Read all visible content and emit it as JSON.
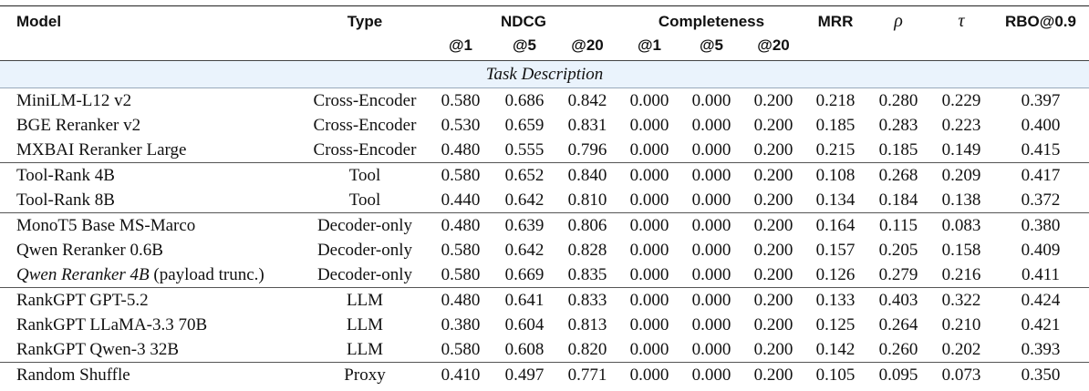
{
  "header": {
    "model": "Model",
    "type": "Type",
    "groups": [
      {
        "label": "NDCG",
        "subs": [
          "@1",
          "@5",
          "@20"
        ]
      },
      {
        "label": "Completeness",
        "subs": [
          "@1",
          "@5",
          "@20"
        ]
      }
    ],
    "metrics": [
      "MRR",
      "ρ",
      "τ",
      "RBO@0.9"
    ]
  },
  "section": "Task Description",
  "groups": [
    {
      "rows": [
        {
          "model": "MiniLM-L12 v2",
          "type": "Cross-Encoder",
          "values": [
            "0.580",
            "0.686",
            "0.842",
            "0.000",
            "0.000",
            "0.200",
            "0.218",
            "0.280",
            "0.229",
            "0.397"
          ]
        },
        {
          "model": "BGE Reranker v2",
          "type": "Cross-Encoder",
          "values": [
            "0.530",
            "0.659",
            "0.831",
            "0.000",
            "0.000",
            "0.200",
            "0.185",
            "0.283",
            "0.223",
            "0.400"
          ]
        },
        {
          "model": "MXBAI Reranker Large",
          "type": "Cross-Encoder",
          "values": [
            "0.480",
            "0.555",
            "0.796",
            "0.000",
            "0.000",
            "0.200",
            "0.215",
            "0.185",
            "0.149",
            "0.415"
          ]
        }
      ]
    },
    {
      "rows": [
        {
          "model": "Tool-Rank 4B",
          "type": "Tool",
          "values": [
            "0.580",
            "0.652",
            "0.840",
            "0.000",
            "0.000",
            "0.200",
            "0.108",
            "0.268",
            "0.209",
            "0.417"
          ]
        },
        {
          "model": "Tool-Rank 8B",
          "type": "Tool",
          "values": [
            "0.440",
            "0.642",
            "0.810",
            "0.000",
            "0.000",
            "0.200",
            "0.134",
            "0.184",
            "0.138",
            "0.372"
          ]
        }
      ]
    },
    {
      "rows": [
        {
          "model": "MonoT5 Base MS-Marco",
          "type": "Decoder-only",
          "values": [
            "0.480",
            "0.639",
            "0.806",
            "0.000",
            "0.000",
            "0.200",
            "0.164",
            "0.115",
            "0.083",
            "0.380"
          ]
        },
        {
          "model": "Qwen Reranker 0.6B",
          "type": "Decoder-only",
          "values": [
            "0.580",
            "0.642",
            "0.828",
            "0.000",
            "0.000",
            "0.200",
            "0.157",
            "0.205",
            "0.158",
            "0.409"
          ]
        },
        {
          "model": "Qwen Reranker 4B",
          "italic": true,
          "note": "(payload trunc.)",
          "type": "Decoder-only",
          "values": [
            "0.580",
            "0.669",
            "0.835",
            "0.000",
            "0.000",
            "0.200",
            "0.126",
            "0.279",
            "0.216",
            "0.411"
          ]
        }
      ]
    },
    {
      "rows": [
        {
          "model": "RankGPT GPT-5.2",
          "type": "LLM",
          "values": [
            "0.480",
            "0.641",
            "0.833",
            "0.000",
            "0.000",
            "0.200",
            "0.133",
            "0.403",
            "0.322",
            "0.424"
          ]
        },
        {
          "model": "RankGPT LLaMA-3.3 70B",
          "type": "LLM",
          "values": [
            "0.380",
            "0.604",
            "0.813",
            "0.000",
            "0.000",
            "0.200",
            "0.125",
            "0.264",
            "0.210",
            "0.421"
          ]
        },
        {
          "model": "RankGPT Qwen-3 32B",
          "type": "LLM",
          "values": [
            "0.580",
            "0.608",
            "0.820",
            "0.000",
            "0.000",
            "0.200",
            "0.142",
            "0.260",
            "0.202",
            "0.393"
          ]
        }
      ]
    },
    {
      "rows": [
        {
          "model": "Random Shuffle",
          "type": "Proxy",
          "values": [
            "0.410",
            "0.497",
            "0.771",
            "0.000",
            "0.000",
            "0.200",
            "0.105",
            "0.095",
            "0.073",
            "0.350"
          ]
        }
      ]
    }
  ]
}
